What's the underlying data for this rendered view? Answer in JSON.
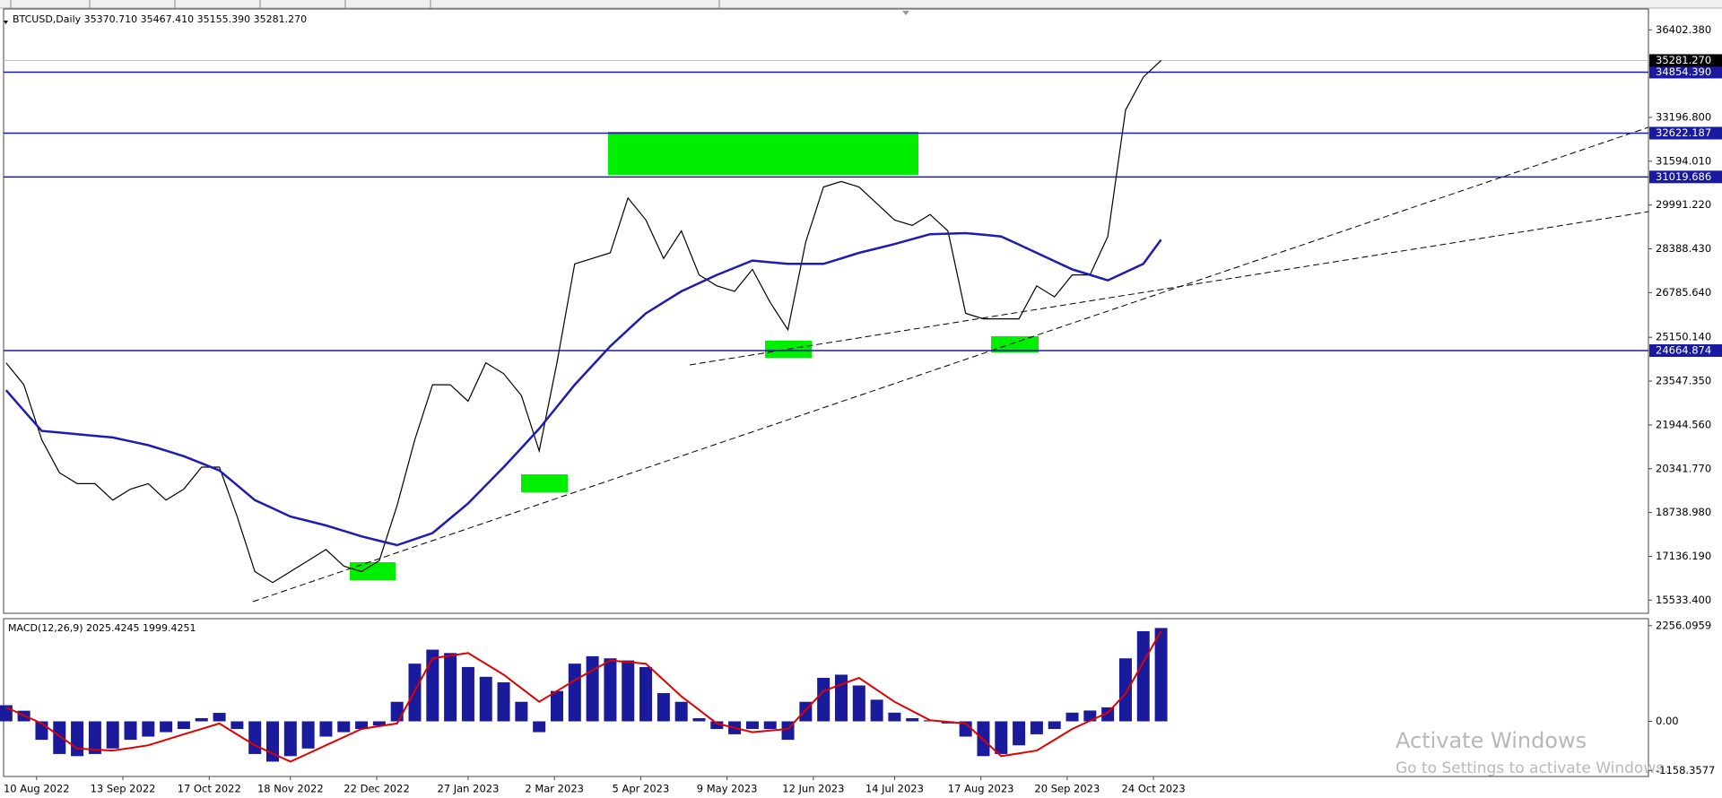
{
  "chart_data": [
    {
      "type": "line",
      "title": "BTCUSD,Daily  35370.710 35467.410 35155.390 35281.270",
      "x": [
        -12,
        -5,
        2,
        9,
        16,
        23,
        30,
        37,
        44,
        51,
        58,
        65,
        72,
        79,
        86,
        93,
        100,
        107,
        114,
        121,
        128,
        135,
        142,
        149,
        156,
        163,
        170,
        177,
        184,
        191,
        198,
        205,
        212,
        219,
        226,
        233,
        240,
        247,
        254,
        261,
        268,
        275,
        282,
        289,
        296,
        303,
        310,
        317,
        324,
        331,
        338,
        345,
        352,
        359,
        366,
        373,
        380,
        387,
        394,
        401,
        408,
        415,
        422,
        429,
        436,
        443
      ],
      "series": [
        {
          "color": "#000000",
          "values": [
            24219,
            23415,
            21404,
            20197,
            19795,
            19795,
            19193,
            19595,
            19795,
            19193,
            19595,
            20399,
            20399,
            18590,
            16578,
            16176,
            16578,
            16980,
            17383,
            16779,
            16578,
            16980,
            18992,
            21404,
            23415,
            23415,
            22811,
            24219,
            23817,
            23013,
            20992,
            24219,
            27838,
            28039,
            28240,
            30250,
            29446,
            28039,
            29044,
            27435,
            27033,
            26832,
            27637,
            26430,
            25425,
            28642,
            30652,
            30853,
            30652,
            30049,
            29446,
            29245,
            29647,
            29044,
            26028,
            25827,
            25827,
            25827,
            27033,
            26631,
            27435,
            27435,
            28843,
            33467,
            34673,
            35281.27
          ]
        },
        {
          "color": "#1c1cb0",
          "values": [
            23214,
            22470,
            21725,
            21665,
            21605,
            21545,
            21484,
            21344,
            21203,
            21002,
            20801,
            20540,
            20279,
            19736,
            19193,
            18892,
            18590,
            18429,
            18268,
            18067,
            17866,
            17705,
            17544,
            17765,
            17986,
            18529,
            19072,
            19736,
            20399,
            21103,
            21806,
            22611,
            23415,
            24119,
            24822,
            25425,
            26028,
            26430,
            26832,
            27134,
            27435,
            27697,
            27958,
            27898,
            27838,
            27838,
            27838,
            28039,
            28240,
            28401,
            28562,
            28743,
            28924,
            28944,
            28964,
            28904,
            28843,
            28542,
            28240,
            27939,
            27637,
            27436,
            27235,
            27537,
            27838,
            28722
          ]
        }
      ],
      "xlim": [
        -13,
        635
      ],
      "ylim": [
        15051,
        37166
      ],
      "yticks": [
        {
          "value": 36402.38,
          "label": "36402.380"
        },
        {
          "value": 33196.8,
          "label": "33196.800"
        },
        {
          "value": 31594.01,
          "label": "31594.010"
        },
        {
          "value": 29991.22,
          "label": "29991.220"
        },
        {
          "value": 28388.43,
          "label": "28388.430"
        },
        {
          "value": 26785.64,
          "label": "26785.640"
        },
        {
          "value": 25150.14,
          "label": "25150.140"
        },
        {
          "value": 23547.35,
          "label": "23547.350"
        },
        {
          "value": 21944.56,
          "label": "21944.560"
        },
        {
          "value": 20341.77,
          "label": "20341.770"
        },
        {
          "value": 18738.98,
          "label": "18738.980"
        },
        {
          "value": 17136.19,
          "label": "17136.190"
        },
        {
          "value": 15533.4,
          "label": "15533.400"
        }
      ],
      "levels": [
        {
          "value": 34854.39,
          "label": "34854.390"
        },
        {
          "value": 32622.187,
          "label": "32622.187"
        },
        {
          "value": 31019.686,
          "label": "31019.686"
        },
        {
          "value": 24664.874,
          "label": "24664.874"
        }
      ],
      "last_price": {
        "value": 35281.27,
        "label": "35281.270"
      },
      "level_color": "#1a1aa0"
    },
    {
      "type": "bar",
      "title": "MACD(12,26,9) 2025.4245 1999.4251",
      "x": [
        -12,
        -5,
        2,
        9,
        16,
        23,
        30,
        37,
        44,
        51,
        58,
        65,
        72,
        79,
        86,
        93,
        100,
        107,
        114,
        121,
        128,
        135,
        142,
        149,
        156,
        163,
        170,
        177,
        184,
        191,
        198,
        205,
        212,
        219,
        226,
        233,
        240,
        247,
        254,
        261,
        268,
        275,
        282,
        289,
        296,
        303,
        310,
        317,
        324,
        331,
        338,
        345,
        352,
        359,
        366,
        373,
        380,
        387,
        394,
        401,
        408,
        415,
        422,
        429,
        436,
        443
      ],
      "series": [
        {
          "type": "bar",
          "color": "#1a1a9c",
          "values": [
            380,
            250,
            -435,
            -770,
            -820,
            -770,
            -640,
            -435,
            -360,
            -255,
            -180,
            75,
            200,
            -180,
            -770,
            -950,
            -820,
            -640,
            -360,
            -255,
            -180,
            -100,
            460,
            1360,
            1690,
            1610,
            1280,
            1050,
            920,
            460,
            -255,
            715,
            1360,
            1535,
            1485,
            1435,
            1280,
            665,
            460,
            75,
            -180,
            -305,
            -180,
            -180,
            -435,
            460,
            1025,
            1100,
            845,
            510,
            205,
            75,
            25,
            -50,
            -360,
            -820,
            -770,
            -565,
            -305,
            -180,
            205,
            255,
            330,
            1485,
            2125,
            2200
          ]
        },
        {
          "type": "line",
          "color": "#e00000",
          "values": [
            330,
            140,
            -50,
            -345,
            -640,
            -665,
            -690,
            -628,
            -565,
            -435,
            -305,
            -178,
            -50,
            -308,
            -565,
            -758,
            -950,
            -758,
            -565,
            -373,
            -180,
            -115,
            -50,
            718,
            1485,
            1548,
            1610,
            1355,
            1100,
            780,
            460,
            715,
            970,
            1203,
            1435,
            1398,
            1360,
            975,
            590,
            270,
            -50,
            -153,
            -255,
            -218,
            -180,
            268,
            715,
            870,
            1025,
            743,
            460,
            243,
            25,
            -13,
            -50,
            -435,
            -820,
            -755,
            -690,
            -435,
            -180,
            13,
            205,
            653,
            1400,
            2125
          ]
        }
      ],
      "xlim": [
        -13,
        635
      ],
      "ylim": [
        -1300,
        2420
      ],
      "yticks": [
        {
          "value": 2256.0959,
          "label": "2256.0959"
        },
        {
          "value": 0,
          "label": "0.00"
        },
        {
          "value": -1158.3577,
          "label": "-1158.3577"
        }
      ],
      "xticks": [
        {
          "value": 0,
          "label": "10 Aug 2022"
        },
        {
          "value": 34,
          "label": "13 Sep 2022"
        },
        {
          "value": 68,
          "label": "17 Oct 2022"
        },
        {
          "value": 100,
          "label": "18 Nov 2022"
        },
        {
          "value": 134,
          "label": "22 Dec 2022"
        },
        {
          "value": 170,
          "label": "27 Jan 2023"
        },
        {
          "value": 204,
          "label": "2 Mar 2023"
        },
        {
          "value": 238,
          "label": "5 Apr 2023"
        },
        {
          "value": 272,
          "label": "9 May 2023"
        },
        {
          "value": 306,
          "label": "12 Jun 2023"
        },
        {
          "value": 338,
          "label": "14 Jul 2023"
        },
        {
          "value": 372,
          "label": "17 Aug 2023"
        },
        {
          "value": 406,
          "label": "20 Sep 2023"
        },
        {
          "value": 440,
          "label": "24 Oct 2023"
        }
      ]
    }
  ],
  "watermark": {
    "title": "Activate Windows",
    "subtitle": "Go to Settings to activate Windows."
  }
}
